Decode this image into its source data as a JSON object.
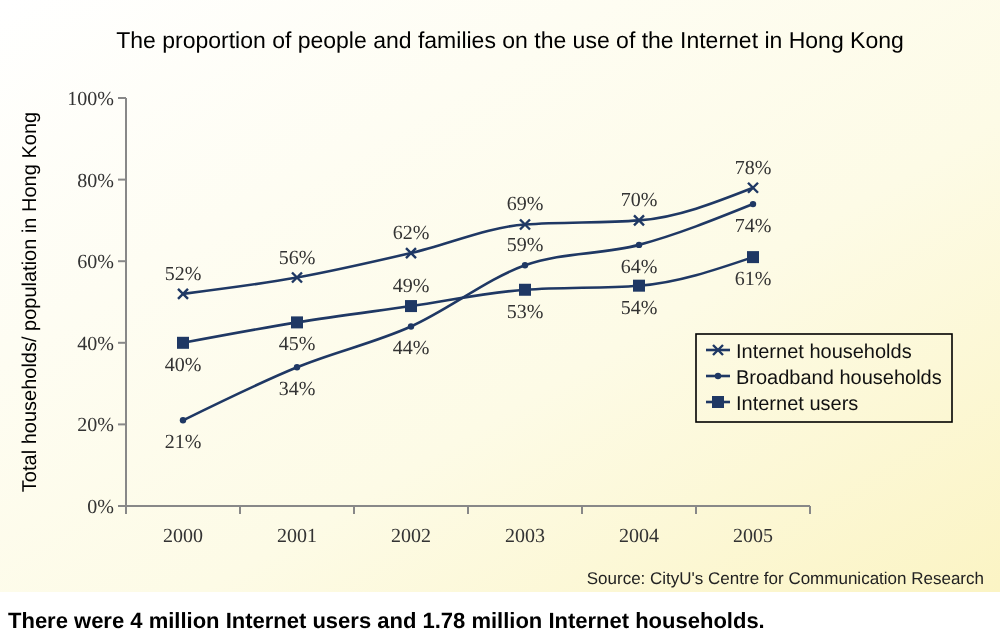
{
  "chart_data": {
    "type": "line",
    "title": "The proportion of people and families on the use of the Internet in Hong Kong",
    "ylabel": "Total households/ population in Hong Kong",
    "categories": [
      "2000",
      "2001",
      "2002",
      "2003",
      "2004",
      "2005"
    ],
    "series": [
      {
        "name": "Internet households",
        "color": "#1f3864",
        "marker": "cross",
        "values": [
          52,
          56,
          62,
          69,
          70,
          78
        ],
        "value_labels": [
          "52%",
          "56%",
          "62%",
          "69%",
          "70%",
          "78%"
        ]
      },
      {
        "name": "Broadband households",
        "color": "#1f3864",
        "marker": "circle",
        "values": [
          21,
          34,
          44,
          59,
          64,
          74
        ],
        "value_labels": [
          "21%",
          "34%",
          "44%",
          "59%",
          "64%",
          "74%"
        ]
      },
      {
        "name": "Internet users",
        "color": "#1f3864",
        "marker": "square",
        "values": [
          40,
          45,
          49,
          53,
          54,
          61
        ],
        "value_labels": [
          "40%",
          "45%",
          "49%",
          "53%",
          "54%",
          "61%"
        ]
      }
    ],
    "ylim": [
      0,
      100
    ],
    "yticks": [
      {
        "value": 0,
        "label": "0%"
      },
      {
        "value": 20,
        "label": "20%"
      },
      {
        "value": 40,
        "label": "40%"
      },
      {
        "value": 60,
        "label": "60%"
      },
      {
        "value": 80,
        "label": "80%"
      },
      {
        "value": 100,
        "label": "100%"
      }
    ],
    "grid": false,
    "legend": "right",
    "annotations": [
      "Source: CityU's Centre for Communication Research",
      "There were 4 million Internet users and 1.78 million Internet households."
    ]
  }
}
